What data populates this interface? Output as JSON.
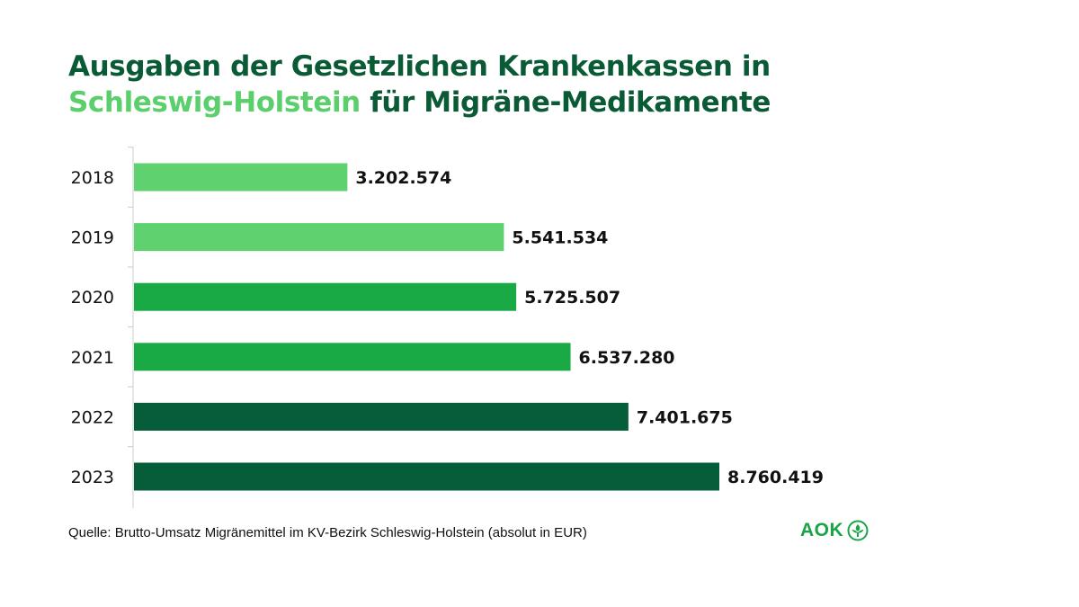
{
  "title": {
    "line1": "Ausgaben der Gesetzlichen Krankenkassen in",
    "line2_highlight": "Schleswig-Holstein",
    "line2_rest": " für Migräne-Medikamente"
  },
  "source": "Quelle: Brutto-Umsatz Migränemittel im KV-Bezirk Schleswig-Holstein (absolut in EUR)",
  "logo": {
    "text": "AOK",
    "icon": "aok-leaf-emblem-icon"
  },
  "colors": {
    "title": "#0a5b35",
    "title_highlight": "#5bcf6c",
    "light_green": "#5fd16e",
    "mid_green": "#1aaa45",
    "dark_green": "#055d3a",
    "axis": "#cccccc",
    "label": "#111111"
  },
  "chart_data": {
    "type": "bar",
    "orientation": "horizontal",
    "categories": [
      "2018",
      "2019",
      "2020",
      "2021",
      "2022",
      "2023"
    ],
    "values": [
      3202574,
      5541534,
      5725507,
      6537280,
      7401675,
      8760419
    ],
    "value_labels": [
      "3.202.574",
      "5.541.534",
      "5.725.507",
      "6.537.280",
      "7.401.675",
      "8.760.419"
    ],
    "bar_colors": [
      "#5fd16e",
      "#5fd16e",
      "#1aaa45",
      "#1aaa45",
      "#055d3a",
      "#055d3a"
    ],
    "xlim": [
      0,
      8760419
    ],
    "grid": false,
    "legend": false
  }
}
